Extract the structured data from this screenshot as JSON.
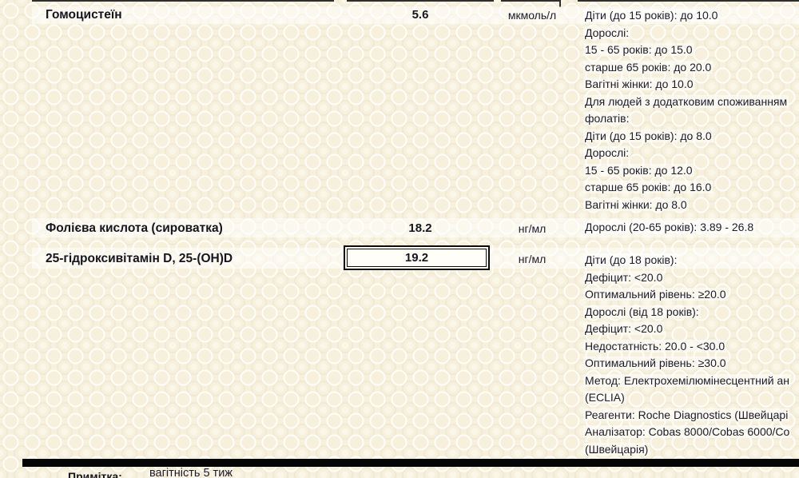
{
  "document_type": "lab-results-table",
  "colors": {
    "paper": "#f6f0dd",
    "ink": "#1c1c2c",
    "ink_bold": "#15151e",
    "rule": "#2e2e2e",
    "divider_bar": "#050505",
    "result_box_border": "#0b0b0b",
    "result_box_fill": "#fffef7"
  },
  "table": {
    "rows": [
      {
        "name": "Гомоцистеїн",
        "result": "5.6",
        "unit": "мкмоль/л",
        "flagged": false,
        "reference_lines": [
          "Діти (до 15 років): до 10.0",
          "Дорослі:",
          "15 - 65 років: до 15.0",
          "старше 65 років: до 20.0",
          "Вагітні жінки: до 10.0",
          "Для людей з додатковим споживанням",
          "фолатів:",
          "Діти (до 15 років): до 8.0",
          "Дорослі:",
          "15 - 65 років: до 12.0",
          "старше 65 років: до 16.0",
          "Вагітні жінки: до 8.0"
        ]
      },
      {
        "name": "Фолієва кислота (сироватка)",
        "result": "18.2",
        "unit": "нг/мл",
        "flagged": false,
        "reference_lines": [
          "Дорослі (20-65 років): 3.89 - 26.8"
        ]
      },
      {
        "name": "25-гідроксивітамін D, 25-(OH)D",
        "result": "19.2",
        "unit": "нг/мл",
        "flagged": true,
        "reference_lines": [
          "Діти (до 18 років):",
          "Дефіцит: <20.0",
          "Оптимальний рівень: ≥20.0",
          "Дорослі (від 18 років):",
          "Дефіцит: <20.0",
          "Недостатність: 20.0 - <30.0",
          "Оптимальний рівень: ≥30.0",
          "Метод: Електрохемілюмінесцентний ан",
          "(ECLIA)",
          "Реагенти: Roche Diagnostics (Швейцарі",
          "Аналізатор: Cobas 8000/Cobas 6000/Co",
          "(Швейцарія)"
        ]
      }
    ]
  },
  "footer": {
    "note_label": "Примітка:",
    "note_value": "вагітність 5 тиж"
  }
}
